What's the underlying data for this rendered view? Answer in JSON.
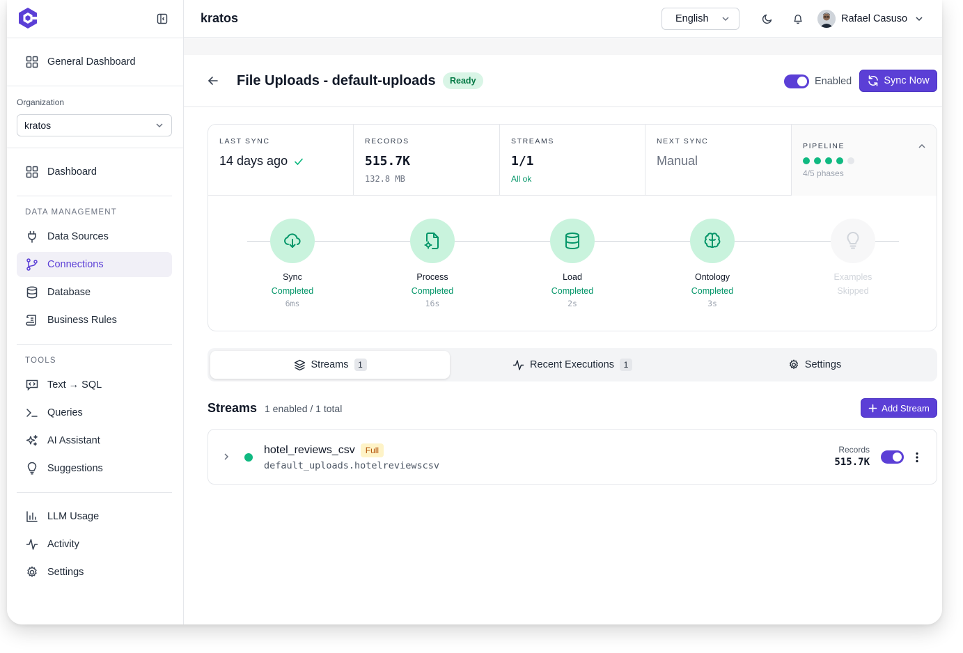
{
  "sidebar": {
    "general_dashboard": "General Dashboard",
    "org_label": "Organization",
    "org_value": "kratos",
    "dashboard": "Dashboard",
    "groups": {
      "data_management": "DATA MANAGEMENT",
      "tools": "TOOLS"
    },
    "data_items": [
      "Data Sources",
      "Connections",
      "Database",
      "Business Rules"
    ],
    "tool_items": [
      "Text → SQL",
      "Queries",
      "AI Assistant",
      "Suggestions"
    ],
    "bottom_items": [
      "LLM Usage",
      "Activity",
      "Settings"
    ],
    "active_item": "Connections"
  },
  "topbar": {
    "title": "kratos",
    "language": "English",
    "user_name": "Rafael Casuso"
  },
  "page": {
    "title": "File Uploads - default-uploads",
    "status": "Ready",
    "enabled_label": "Enabled",
    "sync_now": "Sync Now"
  },
  "stats": {
    "last_sync": {
      "label": "LAST SYNC",
      "value": "14 days ago"
    },
    "records": {
      "label": "RECORDS",
      "value": "515.7K",
      "sub": "132.8 MB"
    },
    "streams": {
      "label": "STREAMS",
      "value": "1/1",
      "sub": "All ok"
    },
    "next_sync": {
      "label": "NEXT SYNC",
      "value": "Manual"
    },
    "pipeline": {
      "label": "PIPELINE",
      "sub": "4/5 phases",
      "completed": 4,
      "total": 5
    }
  },
  "phases": [
    {
      "name": "Sync",
      "status": "Completed",
      "time": "6ms",
      "icon": "cloud-download-icon"
    },
    {
      "name": "Process",
      "status": "Completed",
      "time": "16s",
      "icon": "file-cog-icon"
    },
    {
      "name": "Load",
      "status": "Completed",
      "time": "2s",
      "icon": "database-icon"
    },
    {
      "name": "Ontology",
      "status": "Completed",
      "time": "3s",
      "icon": "brain-icon"
    },
    {
      "name": "Examples",
      "status": "Skipped",
      "time": "",
      "icon": "lightbulb-icon"
    }
  ],
  "tabs": [
    {
      "label": "Streams",
      "count": "1"
    },
    {
      "label": "Recent Executions",
      "count": "1"
    },
    {
      "label": "Settings"
    }
  ],
  "streams": {
    "title": "Streams",
    "summary": "1 enabled / 1 total",
    "add_button": "Add Stream",
    "rows": [
      {
        "name": "hotel_reviews_csv",
        "mode": "Full",
        "path": "default_uploads.hotelreviewscsv",
        "records_label": "Records",
        "records": "515.7K"
      }
    ]
  },
  "colors": {
    "accent": "#5b3fd6",
    "success": "#10b981",
    "success_bg": "#c9f3dd"
  }
}
